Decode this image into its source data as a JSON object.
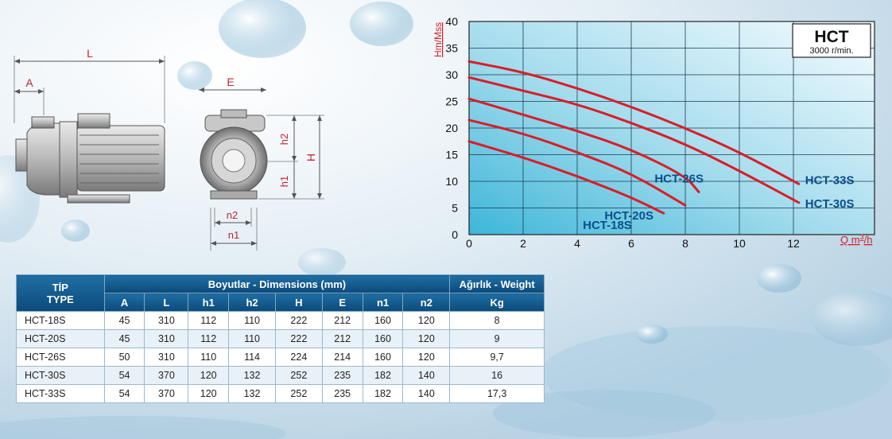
{
  "chart_data": {
    "type": "line",
    "title": "HCT",
    "subtitle": "3000 r/min.",
    "ylabel": "Hm/Mss",
    "xlabel_main": "Q m",
    "xlabel_sup": "3",
    "xlabel_end": "/h",
    "xlim": [
      0,
      15
    ],
    "ylim": [
      0,
      40
    ],
    "x_ticks": [
      0,
      2,
      4,
      6,
      8,
      10,
      12
    ],
    "y_ticks": [
      0,
      5,
      10,
      15,
      20,
      25,
      30,
      35,
      40
    ],
    "grid": true,
    "series": [
      {
        "name": "HCT-18S",
        "x": [
          0,
          2,
          4,
          6,
          7.2
        ],
        "y": [
          17.5,
          14.5,
          11,
          7,
          4
        ]
      },
      {
        "name": "HCT-20S",
        "x": [
          0,
          2,
          4,
          6,
          8
        ],
        "y": [
          21.5,
          19,
          15.5,
          11.5,
          5.5
        ]
      },
      {
        "name": "HCT-26S",
        "x": [
          0,
          2,
          4,
          6,
          8,
          8.5
        ],
        "y": [
          25.5,
          22.5,
          19.5,
          16,
          11,
          8
        ]
      },
      {
        "name": "HCT-30S",
        "x": [
          0,
          2,
          4,
          6,
          8,
          10,
          12.2
        ],
        "y": [
          29.5,
          27,
          24.5,
          21,
          17,
          12,
          6
        ]
      },
      {
        "name": "HCT-33S",
        "x": [
          0,
          2,
          4,
          6,
          8,
          10,
          12.2
        ],
        "y": [
          32.5,
          30.5,
          27.5,
          24,
          20,
          15.5,
          9.5
        ]
      }
    ]
  },
  "drawing": {
    "label_L": "L",
    "label_A": "A",
    "label_E": "E",
    "label_h2": "h2",
    "label_h1": "h1",
    "label_H": "H",
    "label_n2": "n2",
    "label_n1": "n1"
  },
  "table": {
    "type_header_1": "TİP",
    "type_header_2": "TYPE",
    "dimensions_header": "Boyutlar -  Dimensions (mm)",
    "weight_header": "Ağırlık - Weight",
    "columns": [
      "A",
      "L",
      "h1",
      "h2",
      "H",
      "E",
      "n1",
      "n2"
    ],
    "weight_unit": "Kg",
    "rows": [
      {
        "type": "HCT-18S",
        "A": "45",
        "L": "310",
        "h1": "112",
        "h2": "110",
        "H": "222",
        "E": "212",
        "n1": "160",
        "n2": "120",
        "kg": "8"
      },
      {
        "type": "HCT-20S",
        "A": "45",
        "L": "310",
        "h1": "112",
        "h2": "110",
        "H": "222",
        "E": "212",
        "n1": "160",
        "n2": "120",
        "kg": "9"
      },
      {
        "type": "HCT-26S",
        "A": "50",
        "L": "310",
        "h1": "110",
        "h2": "114",
        "H": "224",
        "E": "214",
        "n1": "160",
        "n2": "120",
        "kg": "9,7"
      },
      {
        "type": "HCT-30S",
        "A": "54",
        "L": "370",
        "h1": "120",
        "h2": "132",
        "H": "252",
        "E": "235",
        "n1": "182",
        "n2": "140",
        "kg": "16"
      },
      {
        "type": "HCT-33S",
        "A": "54",
        "L": "370",
        "h1": "120",
        "h2": "132",
        "H": "252",
        "E": "235",
        "n1": "182",
        "n2": "140",
        "kg": "17,3"
      }
    ]
  },
  "colors": {
    "curve": "#d81e27",
    "series_label": "#0b4f8a",
    "axis_label": "#d81e27",
    "header_bg": "#0c4a7a"
  }
}
